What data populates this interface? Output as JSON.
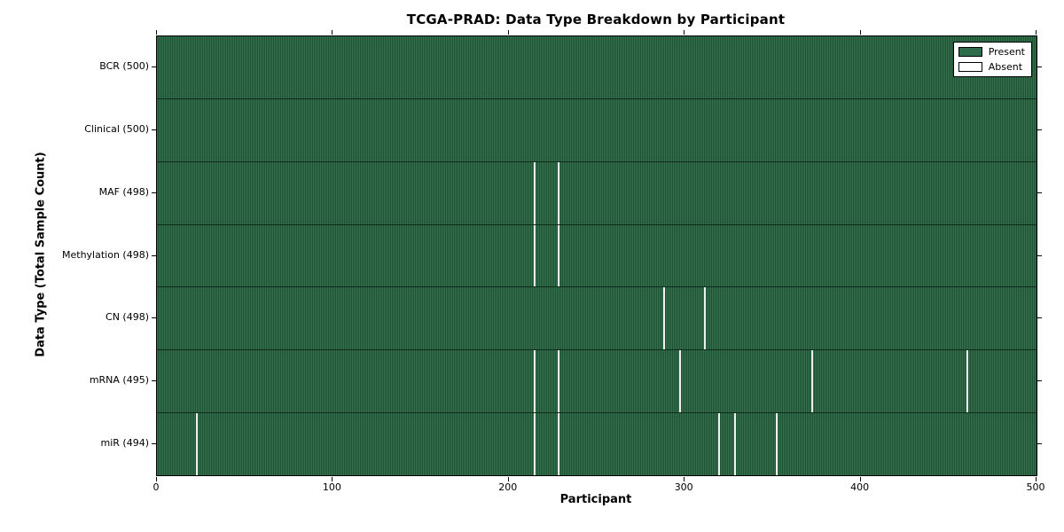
{
  "figure": {
    "title": "TCGA-PRAD: Data Type Breakdown by Participant",
    "xlabel": "Participant",
    "ylabel": "Data Type (Total Sample Count)"
  },
  "legend": {
    "position": "upper right",
    "items": [
      {
        "label": "Present",
        "swatch_color": "#2e6b4a"
      },
      {
        "label": "Absent",
        "swatch_color": "#ffffff"
      }
    ]
  },
  "chart_data": {
    "type": "heatmap",
    "title": "TCGA-PRAD: Data Type Breakdown by Participant",
    "xlabel": "Participant",
    "ylabel": "Data Type (Total Sample Count)",
    "x_range": [
      0,
      500
    ],
    "x_ticks": [
      "0",
      "100",
      "200",
      "300",
      "400",
      "500"
    ],
    "grid": false,
    "legend": [
      "Present",
      "Absent"
    ],
    "legend_position": "upper right",
    "value_encoding": {
      "present": 1,
      "absent": 0
    },
    "rows": [
      {
        "name": "BCR",
        "total": 500,
        "label": "BCR (500)",
        "absent_participants": []
      },
      {
        "name": "Clinical",
        "total": 500,
        "label": "Clinical (500)",
        "absent_participants": []
      },
      {
        "name": "MAF",
        "total": 498,
        "label": "MAF (498)",
        "absent_participants": [
          214,
          228
        ]
      },
      {
        "name": "Methylation",
        "total": 498,
        "label": "Methylation (498)",
        "absent_participants": [
          214,
          228
        ]
      },
      {
        "name": "CN",
        "total": 498,
        "label": "CN (498)",
        "absent_participants": [
          288,
          311
        ]
      },
      {
        "name": "mRNA",
        "total": 495,
        "label": "mRNA (495)",
        "absent_participants": [
          214,
          228,
          297,
          372,
          460
        ]
      },
      {
        "name": "miR",
        "total": 494,
        "label": "miR (494)",
        "absent_participants": [
          22,
          214,
          228,
          319,
          328,
          352
        ]
      }
    ],
    "colors": {
      "present_stripe_light": "#34714f",
      "present_stripe_dark": "#1f5233",
      "absent": "#f0f0f0",
      "row_divider": "#05190f",
      "axis": "#000000",
      "background": "#ffffff"
    }
  }
}
